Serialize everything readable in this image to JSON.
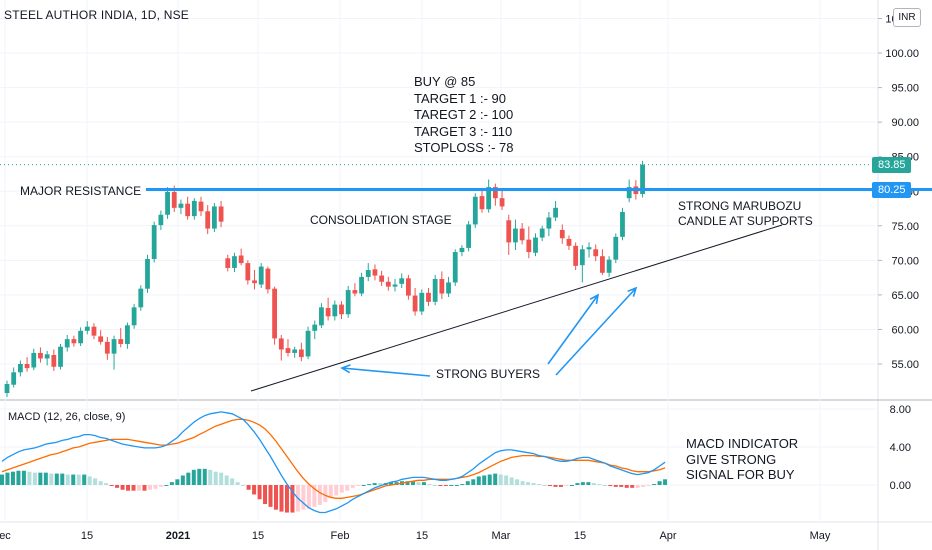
{
  "header": {
    "title": "STEEL AUTHOR INDIA, 1D, NSE",
    "currency": "INR"
  },
  "macd_label": "MACD (12, 26, close, 9)",
  "annotations": {
    "trade_plan": [
      "BUY @ 85",
      "TARGET 1 :- 90",
      "TAREGT 2 :- 100",
      "TARGET 3 :- 110",
      "STOPLOSS :- 78"
    ],
    "major_resistance": "MAJOR RESISTANCE",
    "consolidation": "CONSOLIDATION STAGE",
    "marubozu": [
      "STRONG MARUBOZU",
      "CANDLE AT SUPPORTS"
    ],
    "strong_buyers": "STRONG BUYERS",
    "macd_note": [
      "MACD INDICATOR",
      "GIVE STRONG",
      "SIGNAL FOR BUY"
    ]
  },
  "price_tags": {
    "last": "83.85",
    "resistance": "80.25"
  },
  "colors": {
    "up": "#26a69a",
    "down": "#ef5350",
    "resistance_line": "#2196f3",
    "macd_line": "#2196f3",
    "signal_line": "#ff6d00",
    "hist_up_strong": "#26a69a",
    "hist_up_weak": "#b2dfdb",
    "hist_down_strong": "#ef5350",
    "hist_down_weak": "#ffcdd2",
    "arrow": "#2196f3",
    "trendline": "#131722"
  },
  "chart_data": [
    {
      "type": "candlestick",
      "title": "STEEL AUTHOR INDIA, 1D, NSE",
      "x_ticks": [
        "ec",
        "15",
        "2021",
        "15",
        "Feb",
        "15",
        "Mar",
        "15",
        "Apr",
        "May"
      ],
      "y_ticks": [
        55.0,
        60.0,
        65.0,
        70.0,
        75.0,
        80.0,
        85.0,
        90.0,
        95.0,
        100.0,
        105.0
      ],
      "ylim": [
        50,
        107
      ],
      "resistance_level": 80.25,
      "last_price": 83.85,
      "ohlc": [
        [
          50.8,
          52.6,
          50.2,
          52.1
        ],
        [
          52.0,
          54.5,
          51.6,
          53.8
        ],
        [
          53.8,
          55.5,
          53.2,
          55.0
        ],
        [
          55.0,
          56.0,
          53.9,
          54.4
        ],
        [
          54.5,
          57.2,
          54.1,
          56.6
        ],
        [
          56.6,
          57.4,
          55.2,
          55.8
        ],
        [
          55.8,
          56.9,
          54.8,
          56.4
        ],
        [
          56.3,
          57.1,
          54.0,
          54.6
        ],
        [
          54.6,
          57.9,
          54.2,
          57.5
        ],
        [
          57.4,
          59.2,
          56.8,
          58.6
        ],
        [
          58.6,
          59.1,
          57.5,
          58.0
        ],
        [
          58.0,
          60.3,
          57.6,
          59.8
        ],
        [
          59.8,
          61.2,
          59.3,
          60.4
        ],
        [
          60.4,
          60.9,
          58.6,
          59.1
        ],
        [
          59.0,
          59.9,
          57.8,
          58.2
        ],
        [
          58.2,
          58.9,
          55.6,
          56.5
        ],
        [
          56.5,
          59.1,
          54.2,
          58.6
        ],
        [
          58.6,
          60.2,
          57.4,
          57.9
        ],
        [
          57.9,
          61.0,
          57.2,
          60.6
        ],
        [
          60.6,
          63.7,
          60.1,
          63.2
        ],
        [
          63.2,
          66.4,
          62.7,
          65.9
        ],
        [
          65.9,
          70.8,
          65.3,
          70.2
        ],
        [
          70.2,
          75.6,
          69.7,
          75.1
        ],
        [
          75.1,
          77.2,
          74.4,
          76.6
        ],
        [
          76.6,
          80.6,
          76.0,
          79.9
        ],
        [
          79.9,
          80.8,
          77.0,
          77.6
        ],
        [
          77.6,
          78.8,
          76.7,
          78.2
        ],
        [
          78.2,
          79.2,
          75.9,
          76.4
        ],
        [
          76.4,
          79.0,
          75.9,
          78.6
        ],
        [
          78.5,
          79.2,
          76.4,
          77.1
        ],
        [
          77.1,
          78.0,
          73.8,
          74.6
        ],
        [
          74.6,
          78.3,
          74.1,
          77.8
        ],
        [
          77.8,
          78.6,
          74.8,
          75.6
        ],
        [
          70.3,
          70.8,
          68.4,
          68.9
        ],
        [
          68.9,
          71.1,
          68.3,
          70.6
        ],
        [
          70.7,
          71.7,
          69.3,
          69.6
        ],
        [
          69.6,
          70.0,
          66.5,
          67.1
        ],
        [
          67.1,
          68.6,
          65.8,
          66.7
        ],
        [
          66.5,
          69.6,
          66.0,
          69.1
        ],
        [
          68.8,
          69.1,
          65.2,
          65.8
        ],
        [
          65.9,
          66.2,
          57.8,
          58.7
        ],
        [
          58.7,
          59.2,
          55.5,
          57.1
        ],
        [
          57.3,
          58.6,
          56.1,
          56.6
        ],
        [
          56.6,
          57.5,
          55.9,
          57.1
        ],
        [
          57.1,
          58.1,
          55.4,
          56.0
        ],
        [
          56.1,
          60.4,
          55.7,
          59.8
        ],
        [
          59.8,
          61.3,
          58.6,
          60.7
        ],
        [
          60.6,
          63.8,
          60.2,
          63.2
        ],
        [
          63.1,
          64.6,
          61.3,
          61.9
        ],
        [
          61.9,
          64.2,
          61.3,
          63.6
        ],
        [
          63.6,
          64.1,
          61.5,
          62.2
        ],
        [
          62.2,
          66.3,
          61.7,
          65.7
        ],
        [
          65.7,
          66.7,
          64.8,
          65.2
        ],
        [
          65.2,
          68.2,
          64.8,
          67.6
        ],
        [
          67.6,
          69.6,
          67.0,
          68.6
        ],
        [
          68.7,
          69.4,
          67.1,
          67.8
        ],
        [
          67.8,
          68.5,
          66.3,
          66.9
        ],
        [
          66.9,
          67.6,
          65.6,
          66.2
        ],
        [
          66.2,
          67.3,
          65.5,
          66.5
        ],
        [
          66.6,
          68.1,
          66.0,
          67.4
        ],
        [
          67.4,
          67.9,
          64.3,
          64.9
        ],
        [
          64.9,
          66.0,
          62.0,
          62.6
        ],
        [
          62.6,
          65.8,
          62.1,
          65.3
        ],
        [
          65.3,
          66.0,
          63.4,
          64.0
        ],
        [
          64.0,
          67.9,
          63.5,
          67.3
        ],
        [
          67.3,
          68.4,
          64.4,
          65.2
        ],
        [
          65.2,
          67.6,
          64.7,
          66.8
        ],
        [
          66.8,
          71.6,
          66.3,
          71.2
        ],
        [
          71.2,
          72.2,
          70.6,
          71.8
        ],
        [
          71.8,
          75.7,
          71.3,
          75.2
        ],
        [
          75.2,
          79.7,
          74.7,
          79.2
        ],
        [
          79.3,
          80.5,
          76.9,
          77.4
        ],
        [
          77.4,
          81.7,
          76.9,
          80.6
        ],
        [
          80.6,
          81.1,
          77.9,
          79.0
        ],
        [
          79.0,
          80.1,
          77.3,
          77.8
        ],
        [
          75.8,
          76.6,
          70.8,
          72.6
        ],
        [
          72.6,
          75.9,
          71.5,
          74.6
        ],
        [
          74.6,
          75.4,
          72.3,
          72.9
        ],
        [
          73.0,
          74.9,
          70.3,
          71.2
        ],
        [
          71.1,
          73.9,
          70.6,
          73.3
        ],
        [
          73.3,
          75.0,
          72.8,
          74.6
        ],
        [
          74.6,
          77.0,
          73.5,
          76.2
        ],
        [
          76.2,
          78.6,
          75.7,
          77.6
        ],
        [
          74.4,
          75.2,
          72.4,
          73.2
        ],
        [
          73.1,
          73.6,
          71.5,
          72.1
        ],
        [
          72.1,
          72.6,
          68.6,
          69.2
        ],
        [
          69.3,
          72.2,
          66.8,
          71.6
        ],
        [
          71.6,
          72.6,
          70.4,
          71.9
        ],
        [
          71.6,
          72.3,
          69.9,
          70.6
        ],
        [
          70.6,
          71.6,
          67.9,
          68.2
        ],
        [
          68.2,
          70.6,
          67.6,
          70.1
        ],
        [
          70.1,
          73.9,
          69.6,
          73.4
        ],
        [
          73.4,
          77.6,
          72.9,
          77.0
        ],
        [
          79.0,
          81.7,
          78.4,
          80.6
        ],
        [
          80.7,
          81.6,
          78.8,
          79.6
        ],
        [
          79.6,
          84.4,
          79.1,
          83.85
        ]
      ],
      "ohlc_note": "one candle per trading day, 2020-12-28 to 2021-04-01",
      "macd": {
        "yticks": [
          0.0,
          4.0,
          8.0
        ],
        "ylim": [
          -5,
          8.5
        ],
        "series": [
          {
            "name": "MACD",
            "values": [
              2.5,
              2.9,
              3.2,
              3.5,
              3.7,
              3.8,
              3.9,
              4.1,
              4.3,
              4.4,
              4.5,
              4.7,
              4.8,
              5.0,
              5.1,
              5.3,
              5.3,
              5.2,
              5.0,
              4.9,
              4.7,
              4.5,
              4.3,
              4.2,
              4.1,
              4.0,
              3.9,
              3.9,
              3.9,
              4.0,
              4.2,
              4.6,
              5.0,
              5.6,
              6.1,
              6.6,
              7.0,
              7.3,
              7.5,
              7.6,
              7.7,
              7.6,
              7.5,
              7.2,
              6.9,
              6.3,
              5.6,
              4.8,
              3.9,
              3.0,
              2.0,
              1.0,
              0.1,
              -0.7,
              -1.4,
              -1.9,
              -2.4,
              -2.7,
              -2.9,
              -2.9,
              -2.7,
              -2.5,
              -2.2,
              -1.9,
              -1.5,
              -1.2,
              -0.9,
              -0.6,
              -0.3,
              -0.1,
              0.1,
              0.3,
              0.4,
              0.6,
              0.7,
              0.8,
              0.8,
              0.8,
              0.7,
              0.6,
              0.5,
              0.5,
              0.6,
              0.7,
              0.9,
              1.3,
              1.7,
              2.2,
              2.6,
              3.0,
              3.4,
              3.6,
              3.7,
              3.7,
              3.6,
              3.5,
              3.4,
              3.3,
              3.1,
              3.0,
              2.8,
              2.6,
              2.5,
              2.5,
              2.6,
              2.8,
              2.9,
              2.9,
              2.7,
              2.5,
              2.3,
              2.0,
              1.8,
              1.6,
              1.4,
              1.2,
              1.1,
              1.2,
              1.3,
              1.6,
              2.0,
              2.4
            ]
          },
          {
            "name": "Signal",
            "values": [
              1.4,
              1.6,
              1.8,
              2.0,
              2.2,
              2.4,
              2.6,
              2.8,
              3.0,
              3.2,
              3.3,
              3.5,
              3.7,
              3.9,
              4.0,
              4.2,
              4.4,
              4.5,
              4.6,
              4.7,
              4.8,
              4.8,
              4.8,
              4.8,
              4.7,
              4.6,
              4.5,
              4.4,
              4.3,
              4.2,
              4.2,
              4.3,
              4.4,
              4.6,
              4.8,
              5.0,
              5.3,
              5.6,
              5.9,
              6.2,
              6.4,
              6.6,
              6.8,
              6.9,
              6.9,
              6.8,
              6.6,
              6.3,
              5.9,
              5.3,
              4.6,
              3.8,
              3.0,
              2.2,
              1.4,
              0.7,
              0.1,
              -0.4,
              -0.8,
              -1.1,
              -1.3,
              -1.4,
              -1.4,
              -1.3,
              -1.2,
              -1.1,
              -0.9,
              -0.7,
              -0.5,
              -0.3,
              -0.1,
              0.0,
              0.1,
              0.2,
              0.3,
              0.4,
              0.5,
              0.5,
              0.6,
              0.6,
              0.6,
              0.6,
              0.6,
              0.7,
              0.8,
              0.9,
              1.1,
              1.3,
              1.6,
              1.9,
              2.2,
              2.5,
              2.7,
              2.9,
              3.0,
              3.1,
              3.1,
              3.1,
              3.0,
              3.0,
              2.9,
              2.8,
              2.7,
              2.6,
              2.6,
              2.6,
              2.6,
              2.6,
              2.5,
              2.4,
              2.3,
              2.1,
              2.0,
              1.8,
              1.7,
              1.5,
              1.4,
              1.4,
              1.4,
              1.5,
              1.6,
              1.8
            ]
          }
        ]
      }
    }
  ]
}
